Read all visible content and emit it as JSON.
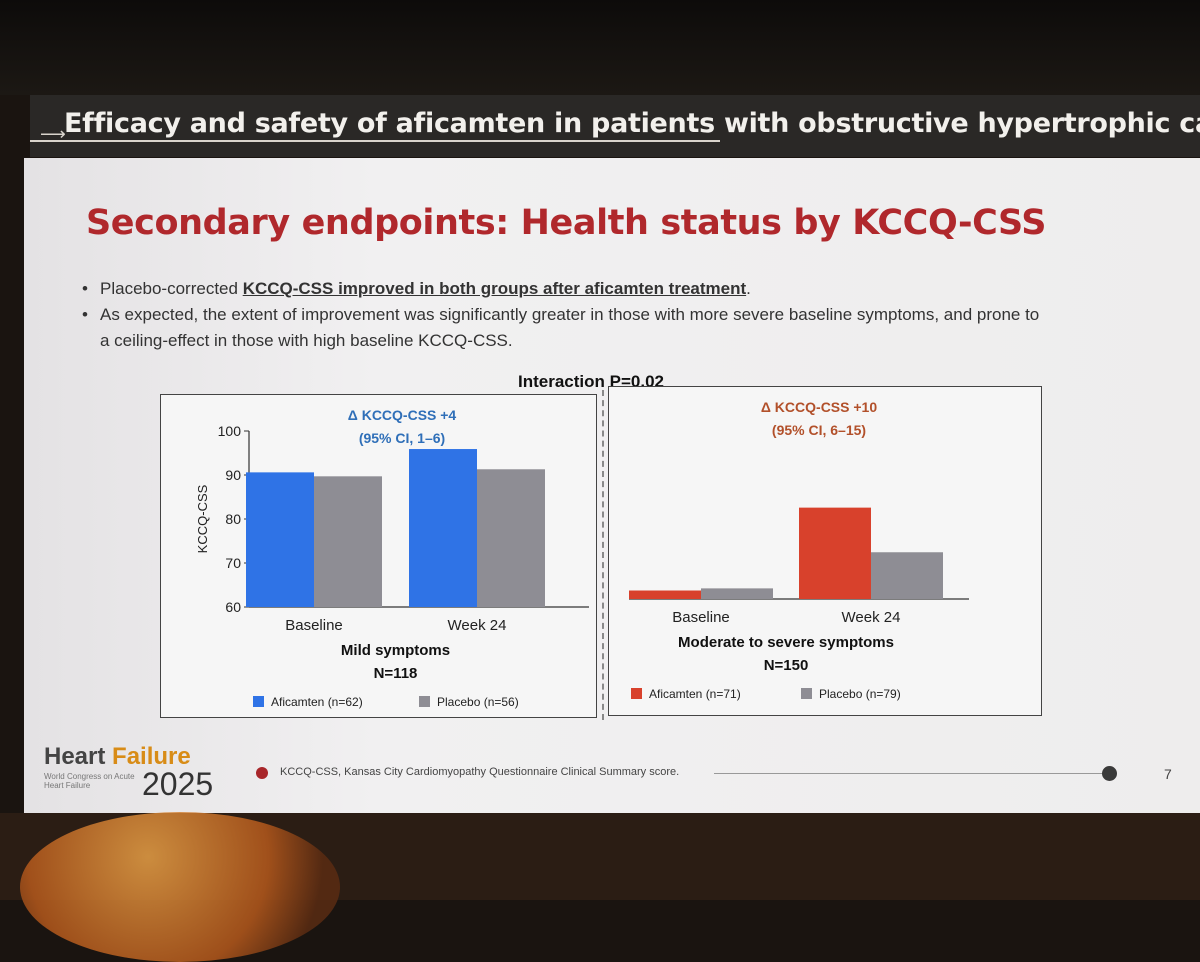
{
  "header": {
    "title": "Efficacy and safety of aficamten in patients with obstructive hypertrophic cardi"
  },
  "slide": {
    "title": "Secondary endpoints: Health status by KCCQ-CSS",
    "bullet1_pre": "Placebo-corrected ",
    "bullet1_emph": "KCCQ-CSS improved in both groups after aficamten treatment",
    "bullet1_post": ".",
    "bullet2": "As expected, the extent of improvement was significantly greater in those with more severe baseline symptoms, and prone to a ceiling-effect in those with high baseline KCCQ-CSS.",
    "interaction": "Interaction P=0.02"
  },
  "colors": {
    "aficamten_mild": "#2f73e6",
    "aficamten_severe": "#d8412c",
    "placebo": "#8e8d94"
  },
  "chart_data": [
    {
      "type": "bar",
      "title": "Mild symptoms",
      "subtitle": "N=118",
      "ylabel": "KCCQ-CSS",
      "ylim": [
        60,
        100
      ],
      "yticks": [
        60,
        70,
        80,
        90,
        100
      ],
      "categories": [
        "Baseline",
        "Week 24"
      ],
      "series": [
        {
          "name": "Aficamten (n=62)",
          "values": [
            90.6,
            95.9
          ]
        },
        {
          "name": "Placebo (n=56)",
          "values": [
            89.7,
            91.3
          ]
        }
      ],
      "annotation": [
        "Δ KCCQ-CSS +4",
        "(95% CI, 1–6)"
      ],
      "legend": "bottom"
    },
    {
      "type": "bar",
      "title": "Moderate to severe symptoms",
      "subtitle": "N=150",
      "ylim": [
        60,
        100
      ],
      "categories": [
        "Baseline",
        "Week 24"
      ],
      "series": [
        {
          "name": "Aficamten (n=71)",
          "values": [
            62.0,
            81.5
          ]
        },
        {
          "name": "Placebo (n=79)",
          "values": [
            62.5,
            71.0
          ]
        }
      ],
      "annotation": [
        "Δ KCCQ-CSS +10",
        "(95% CI, 6–15)"
      ],
      "legend": "bottom"
    }
  ],
  "footer": {
    "logo_a": "Heart ",
    "logo_b": "Failure",
    "logo_sub": "World Congress on Acute Heart Failure",
    "year": "2025",
    "note": "KCCQ-CSS, Kansas City Cardiomyopathy Questionnaire Clinical Summary score.",
    "page": "7"
  }
}
